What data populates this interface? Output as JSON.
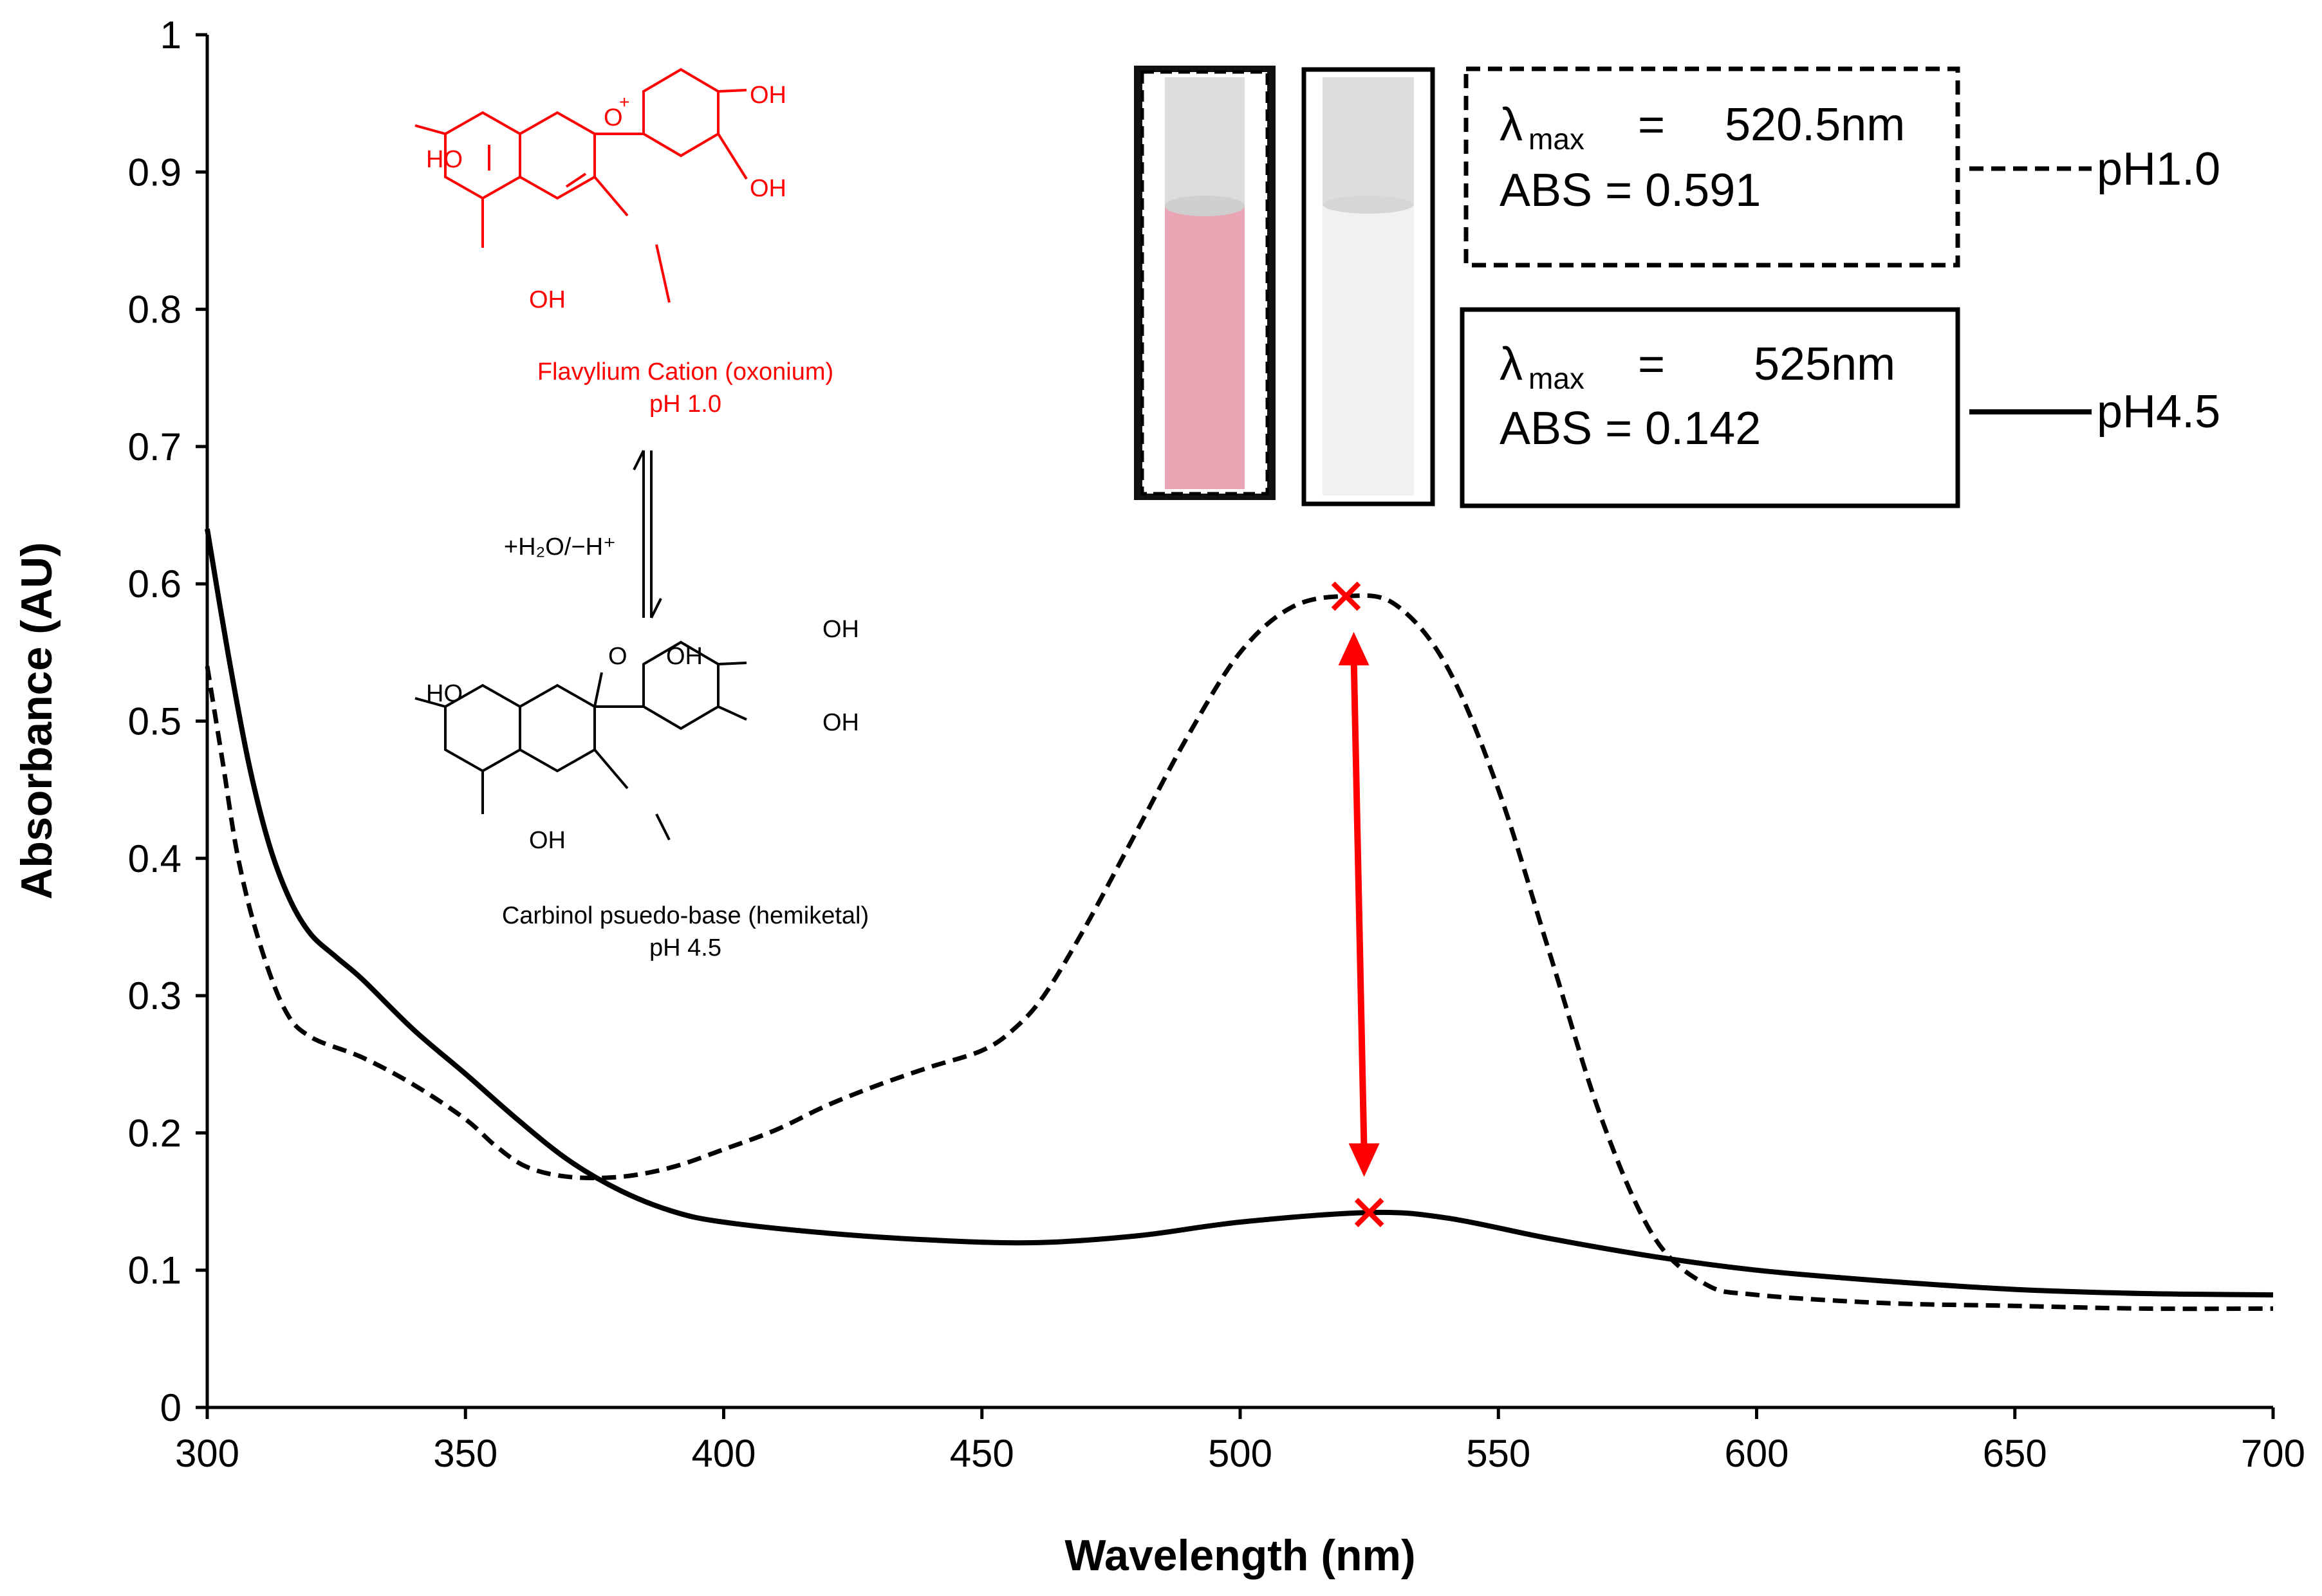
{
  "chart_data": {
    "type": "line",
    "xlabel": "Wavelength (nm)",
    "ylabel": "Absorbance (AU)",
    "xlim": [
      300,
      700
    ],
    "ylim": [
      0,
      1
    ],
    "x_ticks": [
      "300",
      "350",
      "400",
      "450",
      "500",
      "550",
      "600",
      "650",
      "700"
    ],
    "y_ticks": [
      "0",
      "0.1",
      "0.2",
      "0.3",
      "0.4",
      "0.5",
      "0.6",
      "0.7",
      "0.8",
      "0.9",
      "1"
    ],
    "grid": false,
    "legend_position": "top-right",
    "series": [
      {
        "name": "pH1.0",
        "style": "dashed",
        "color": "#000000",
        "points": [
          [
            300,
            0.54
          ],
          [
            303,
            0.47
          ],
          [
            306,
            0.4
          ],
          [
            310,
            0.34
          ],
          [
            315,
            0.29
          ],
          [
            320,
            0.27
          ],
          [
            330,
            0.255
          ],
          [
            340,
            0.235
          ],
          [
            350,
            0.21
          ],
          [
            356,
            0.19
          ],
          [
            362,
            0.175
          ],
          [
            370,
            0.168
          ],
          [
            380,
            0.168
          ],
          [
            390,
            0.175
          ],
          [
            400,
            0.188
          ],
          [
            410,
            0.202
          ],
          [
            420,
            0.22
          ],
          [
            430,
            0.235
          ],
          [
            440,
            0.248
          ],
          [
            450,
            0.26
          ],
          [
            456,
            0.275
          ],
          [
            462,
            0.3
          ],
          [
            470,
            0.35
          ],
          [
            480,
            0.42
          ],
          [
            490,
            0.49
          ],
          [
            500,
            0.55
          ],
          [
            510,
            0.583
          ],
          [
            520.5,
            0.591
          ],
          [
            530,
            0.585
          ],
          [
            540,
            0.54
          ],
          [
            550,
            0.45
          ],
          [
            560,
            0.33
          ],
          [
            570,
            0.21
          ],
          [
            580,
            0.125
          ],
          [
            590,
            0.09
          ],
          [
            600,
            0.082
          ],
          [
            625,
            0.076
          ],
          [
            650,
            0.074
          ],
          [
            675,
            0.072
          ],
          [
            700,
            0.072
          ]
        ]
      },
      {
        "name": "pH4.5",
        "style": "solid",
        "color": "#000000",
        "points": [
          [
            300,
            0.64
          ],
          [
            304,
            0.55
          ],
          [
            308,
            0.47
          ],
          [
            312,
            0.41
          ],
          [
            316,
            0.37
          ],
          [
            320,
            0.345
          ],
          [
            325,
            0.328
          ],
          [
            330,
            0.312
          ],
          [
            340,
            0.275
          ],
          [
            350,
            0.243
          ],
          [
            360,
            0.21
          ],
          [
            370,
            0.18
          ],
          [
            380,
            0.158
          ],
          [
            390,
            0.143
          ],
          [
            400,
            0.135
          ],
          [
            420,
            0.127
          ],
          [
            440,
            0.122
          ],
          [
            460,
            0.12
          ],
          [
            480,
            0.125
          ],
          [
            500,
            0.135
          ],
          [
            525,
            0.142
          ],
          [
            540,
            0.138
          ],
          [
            560,
            0.123
          ],
          [
            580,
            0.11
          ],
          [
            600,
            0.1
          ],
          [
            625,
            0.092
          ],
          [
            650,
            0.086
          ],
          [
            675,
            0.083
          ],
          [
            700,
            0.082
          ]
        ]
      }
    ],
    "markers": [
      {
        "x": 520.5,
        "y": 0.591,
        "symbol": "x",
        "color": "#ff0000"
      },
      {
        "x": 525,
        "y": 0.142,
        "symbol": "x",
        "color": "#ff0000"
      }
    ],
    "arrow": {
      "from": [
        522,
        0.565
      ],
      "to": [
        524,
        0.168
      ],
      "double_headed": true,
      "color": "#ff0000"
    }
  },
  "annotations": {
    "structure_top": {
      "label": "Flavylium Cation (oxonium)",
      "condition": "pH 1.0",
      "color": "#ff0000",
      "atoms": [
        "HO",
        "OH",
        "OH",
        "OH",
        "O",
        "+"
      ]
    },
    "equilibrium_label": "+H₂O/−H⁺",
    "structure_bottom": {
      "label": "Carbinol psuedo-base (hemiketal)",
      "condition": "pH 4.5",
      "color": "#000000",
      "atoms": [
        "HO",
        "O",
        "OH",
        "OH",
        "OH",
        "OH"
      ]
    }
  },
  "cuvettes": {
    "left_color": "#e8a6b4",
    "right_color": "#f1f1f1"
  },
  "info_boxes": [
    {
      "lambda_symbol": "λ",
      "subscript": "max",
      "equals": "=",
      "lambda_value": "520.5nm",
      "abs_text": "ABS = 0.591",
      "legend_label": "pH1.0",
      "border": "dashed"
    },
    {
      "lambda_symbol": "λ",
      "subscript": "max",
      "equals": "=",
      "lambda_value": "525nm",
      "abs_text": "ABS = 0.142",
      "legend_label": "pH4.5",
      "border": "solid"
    }
  ]
}
